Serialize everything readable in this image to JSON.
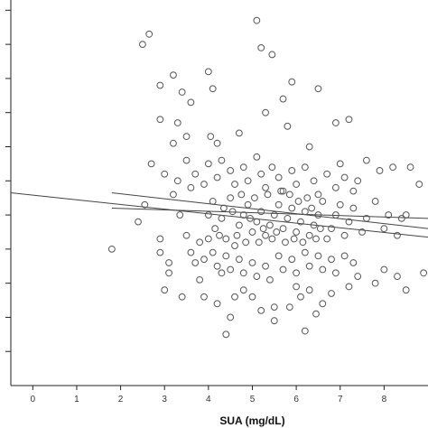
{
  "chart_data": {
    "type": "scatter",
    "title": "",
    "xlabel": "SUA (mg/dL)",
    "ylabel": "",
    "xlim": [
      -0.5,
      9
    ],
    "ylim": [
      0,
      11.3
    ],
    "x_ticks": [
      0,
      1,
      2,
      3,
      4,
      5,
      6,
      7,
      8
    ],
    "x_tick_labels": [
      "0",
      "1",
      "2",
      "3",
      "4",
      "5",
      "6",
      "7",
      "8"
    ],
    "y_ticks": [
      1,
      2,
      3,
      4,
      5,
      6,
      7,
      8,
      9,
      10,
      11
    ],
    "grid": false,
    "legend": "none",
    "colors": {
      "points": "#555555",
      "lines": "#444444",
      "axis": "#222222"
    },
    "fit_lines": [
      {
        "x": [
          -0.5,
          9.0
        ],
        "y": [
          5.65,
          4.35
        ]
      },
      {
        "x": [
          1.8,
          9.0
        ],
        "y": [
          5.65,
          4.6
        ]
      },
      {
        "x": [
          1.8,
          9.0
        ],
        "y": [
          5.2,
          4.9
        ]
      }
    ],
    "series": [
      {
        "points": [
          [
            1.8,
            4.0
          ],
          [
            2.5,
            10.0
          ],
          [
            2.65,
            10.3
          ],
          [
            3.2,
            9.1
          ],
          [
            2.9,
            8.8
          ],
          [
            3.4,
            8.6
          ],
          [
            3.6,
            8.3
          ],
          [
            2.9,
            7.8
          ],
          [
            3.3,
            7.7
          ],
          [
            3.2,
            7.1
          ],
          [
            3.5,
            7.3
          ],
          [
            2.7,
            6.5
          ],
          [
            3.0,
            6.2
          ],
          [
            3.3,
            6.0
          ],
          [
            3.5,
            6.6
          ],
          [
            4.0,
            9.2
          ],
          [
            4.1,
            8.7
          ],
          [
            4.05,
            7.3
          ],
          [
            4.2,
            7.1
          ],
          [
            4.7,
            7.4
          ],
          [
            5.1,
            10.7
          ],
          [
            5.2,
            9.9
          ],
          [
            5.45,
            9.7
          ],
          [
            5.3,
            8.0
          ],
          [
            5.7,
            8.4
          ],
          [
            5.8,
            7.6
          ],
          [
            5.9,
            8.9
          ],
          [
            6.5,
            8.7
          ],
          [
            6.3,
            7.0
          ],
          [
            6.9,
            7.7
          ],
          [
            7.2,
            7.8
          ],
          [
            7.0,
            6.5
          ],
          [
            7.4,
            6.0
          ],
          [
            7.6,
            6.6
          ],
          [
            7.9,
            6.3
          ],
          [
            8.2,
            6.4
          ],
          [
            8.6,
            6.4
          ],
          [
            8.8,
            5.9
          ],
          [
            8.5,
            5.0
          ],
          [
            9.0,
            5.2
          ],
          [
            2.4,
            4.8
          ],
          [
            2.55,
            5.3
          ],
          [
            2.9,
            4.3
          ],
          [
            3.1,
            3.6
          ],
          [
            3.1,
            3.3
          ],
          [
            2.9,
            3.9
          ],
          [
            3.0,
            2.8
          ],
          [
            3.4,
            2.6
          ],
          [
            3.2,
            5.6
          ],
          [
            3.35,
            5.0
          ],
          [
            3.5,
            4.4
          ],
          [
            3.7,
            3.6
          ],
          [
            3.8,
            3.1
          ],
          [
            3.9,
            2.6
          ],
          [
            4.2,
            2.4
          ],
          [
            4.3,
            3.3
          ],
          [
            4.5,
            2.0
          ],
          [
            4.6,
            2.6
          ],
          [
            4.4,
            1.5
          ],
          [
            4.8,
            2.8
          ],
          [
            5.0,
            2.6
          ],
          [
            5.2,
            2.2
          ],
          [
            5.5,
            2.3
          ],
          [
            5.85,
            2.3
          ],
          [
            6.0,
            2.9
          ],
          [
            6.1,
            2.6
          ],
          [
            6.3,
            2.8
          ],
          [
            6.45,
            2.1
          ],
          [
            6.6,
            2.4
          ],
          [
            6.8,
            2.7
          ],
          [
            7.2,
            2.9
          ],
          [
            7.4,
            3.2
          ],
          [
            7.8,
            3.0
          ],
          [
            8.0,
            3.4
          ],
          [
            8.3,
            3.2
          ],
          [
            8.5,
            2.8
          ],
          [
            8.9,
            3.3
          ],
          [
            9.0,
            2.5
          ],
          [
            5.5,
            1.9
          ],
          [
            6.2,
            1.6
          ],
          [
            4.0,
            4.3
          ],
          [
            4.15,
            4.6
          ],
          [
            4.3,
            4.9
          ],
          [
            4.35,
            5.2
          ],
          [
            4.5,
            5.5
          ],
          [
            4.6,
            4.1
          ],
          [
            4.7,
            4.7
          ],
          [
            4.8,
            5.0
          ],
          [
            4.9,
            5.3
          ],
          [
            5.0,
            4.5
          ],
          [
            5.1,
            4.8
          ],
          [
            5.2,
            5.1
          ],
          [
            5.3,
            4.4
          ],
          [
            5.4,
            4.7
          ],
          [
            5.5,
            5.0
          ],
          [
            5.6,
            5.3
          ],
          [
            5.7,
            4.6
          ],
          [
            5.8,
            4.9
          ],
          [
            5.9,
            5.2
          ],
          [
            6.0,
            4.5
          ],
          [
            6.1,
            4.8
          ],
          [
            6.2,
            5.1
          ],
          [
            6.3,
            4.4
          ],
          [
            6.4,
            4.7
          ],
          [
            6.5,
            5.0
          ],
          [
            6.6,
            5.4
          ],
          [
            6.7,
            4.3
          ],
          [
            6.8,
            4.6
          ],
          [
            6.9,
            5.0
          ],
          [
            7.0,
            5.3
          ],
          [
            7.1,
            4.4
          ],
          [
            7.2,
            4.8
          ],
          [
            7.3,
            5.2
          ],
          [
            7.5,
            4.5
          ],
          [
            7.6,
            4.9
          ],
          [
            7.8,
            5.4
          ],
          [
            8.0,
            4.6
          ],
          [
            8.1,
            5.0
          ],
          [
            8.3,
            4.4
          ],
          [
            8.4,
            4.9
          ],
          [
            3.6,
            5.8
          ],
          [
            3.7,
            6.2
          ],
          [
            3.9,
            5.9
          ],
          [
            4.0,
            6.5
          ],
          [
            4.2,
            6.1
          ],
          [
            4.3,
            6.6
          ],
          [
            4.5,
            6.3
          ],
          [
            4.6,
            5.9
          ],
          [
            4.8,
            6.4
          ],
          [
            4.9,
            6.0
          ],
          [
            5.1,
            6.7
          ],
          [
            5.2,
            6.2
          ],
          [
            5.3,
            5.8
          ],
          [
            5.45,
            6.4
          ],
          [
            5.6,
            6.1
          ],
          [
            5.7,
            5.7
          ],
          [
            5.9,
            6.3
          ],
          [
            6.0,
            5.9
          ],
          [
            6.2,
            6.4
          ],
          [
            6.4,
            6.0
          ],
          [
            6.5,
            5.6
          ],
          [
            6.7,
            6.2
          ],
          [
            6.9,
            5.8
          ],
          [
            7.1,
            6.1
          ],
          [
            7.3,
            5.7
          ],
          [
            3.6,
            3.9
          ],
          [
            3.8,
            4.2
          ],
          [
            3.9,
            3.7
          ],
          [
            4.1,
            3.9
          ],
          [
            4.2,
            3.5
          ],
          [
            4.4,
            3.8
          ],
          [
            4.5,
            3.4
          ],
          [
            4.7,
            3.7
          ],
          [
            4.8,
            3.3
          ],
          [
            5.0,
            3.6
          ],
          [
            5.1,
            3.2
          ],
          [
            5.3,
            3.5
          ],
          [
            5.4,
            3.1
          ],
          [
            5.6,
            3.8
          ],
          [
            5.7,
            3.4
          ],
          [
            5.9,
            3.7
          ],
          [
            6.0,
            3.3
          ],
          [
            6.2,
            3.9
          ],
          [
            6.3,
            3.5
          ],
          [
            6.5,
            3.8
          ],
          [
            6.6,
            3.4
          ],
          [
            6.8,
            3.7
          ],
          [
            6.9,
            3.3
          ],
          [
            7.1,
            3.8
          ],
          [
            7.3,
            3.6
          ],
          [
            4.0,
            5.0
          ],
          [
            4.1,
            5.4
          ],
          [
            4.25,
            4.4
          ],
          [
            4.4,
            4.3
          ],
          [
            4.55,
            5.1
          ],
          [
            4.65,
            4.4
          ],
          [
            4.75,
            5.6
          ],
          [
            4.85,
            4.2
          ],
          [
            4.95,
            4.9
          ],
          [
            5.05,
            5.5
          ],
          [
            5.15,
            4.2
          ],
          [
            5.25,
            4.6
          ],
          [
            5.35,
            5.6
          ],
          [
            5.45,
            4.3
          ],
          [
            5.55,
            4.5
          ],
          [
            5.65,
            5.7
          ],
          [
            5.75,
            4.2
          ],
          [
            5.85,
            5.6
          ],
          [
            5.95,
            4.3
          ],
          [
            6.05,
            5.4
          ],
          [
            6.15,
            4.2
          ],
          [
            6.25,
            5.5
          ],
          [
            6.35,
            5.2
          ],
          [
            6.45,
            4.3
          ],
          [
            6.55,
            4.6
          ]
        ]
      }
    ]
  }
}
